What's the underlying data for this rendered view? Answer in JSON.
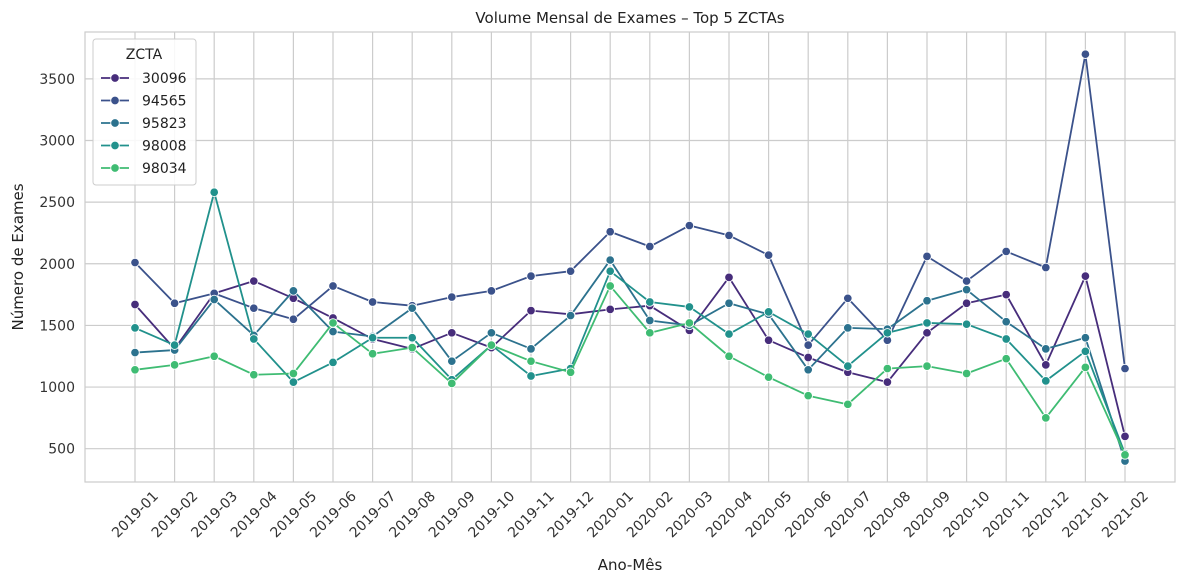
{
  "chart_data": {
    "type": "line",
    "title": "Volume Mensal de Exames – Top 5 ZCTAs",
    "xlabel": "Ano-Mês",
    "ylabel": "Número de Exames",
    "ylim": [
      230,
      3880
    ],
    "yticks": [
      500,
      1000,
      1500,
      2000,
      2500,
      3000,
      3500
    ],
    "grid": true,
    "legend": {
      "title": "ZCTA",
      "placement": "top-left"
    },
    "categories": [
      "2019-01",
      "2019-02",
      "2019-03",
      "2019-04",
      "2019-05",
      "2019-06",
      "2019-07",
      "2019-08",
      "2019-09",
      "2019-10",
      "2019-11",
      "2019-12",
      "2020-01",
      "2020-02",
      "2020-03",
      "2020-04",
      "2020-05",
      "2020-06",
      "2020-07",
      "2020-08",
      "2020-09",
      "2020-10",
      "2020-11",
      "2020-12",
      "2021-01",
      "2021-02"
    ],
    "series": [
      {
        "name": "30096",
        "color": "#472d7b",
        "values": [
          1670,
          1310,
          1760,
          1860,
          1720,
          1560,
          1390,
          1310,
          1440,
          1320,
          1620,
          1590,
          1630,
          1660,
          1460,
          1890,
          1380,
          1240,
          1120,
          1040,
          1440,
          1680,
          1750,
          1180,
          1900,
          600
        ]
      },
      {
        "name": "94565",
        "color": "#3b528b",
        "values": [
          2010,
          1680,
          1760,
          1640,
          1550,
          1820,
          1690,
          1660,
          1730,
          1780,
          1900,
          1940,
          2260,
          2140,
          2310,
          2230,
          2070,
          1340,
          1720,
          1380,
          2060,
          1860,
          2100,
          1970,
          3700,
          1150
        ]
      },
      {
        "name": "95823",
        "color": "#2c728e",
        "values": [
          1280,
          1300,
          1710,
          1420,
          1780,
          1450,
          1410,
          1640,
          1210,
          1440,
          1310,
          1580,
          2030,
          1540,
          1500,
          1680,
          1590,
          1140,
          1480,
          1470,
          1700,
          1790,
          1530,
          1310,
          1400,
          400
        ]
      },
      {
        "name": "98008",
        "color": "#21918c",
        "values": [
          1480,
          1340,
          2580,
          1390,
          1040,
          1200,
          1400,
          1400,
          1060,
          1340,
          1090,
          1150,
          1940,
          1690,
          1650,
          1430,
          1610,
          1430,
          1170,
          1440,
          1520,
          1510,
          1390,
          1050,
          1290,
          460
        ]
      },
      {
        "name": "98034",
        "color": "#3fbc73",
        "values": [
          1140,
          1180,
          1250,
          1100,
          1110,
          1520,
          1270,
          1320,
          1030,
          1340,
          1210,
          1120,
          1820,
          1440,
          1520,
          1250,
          1080,
          930,
          860,
          1150,
          1170,
          1110,
          1230,
          750,
          1160,
          450
        ]
      }
    ]
  }
}
